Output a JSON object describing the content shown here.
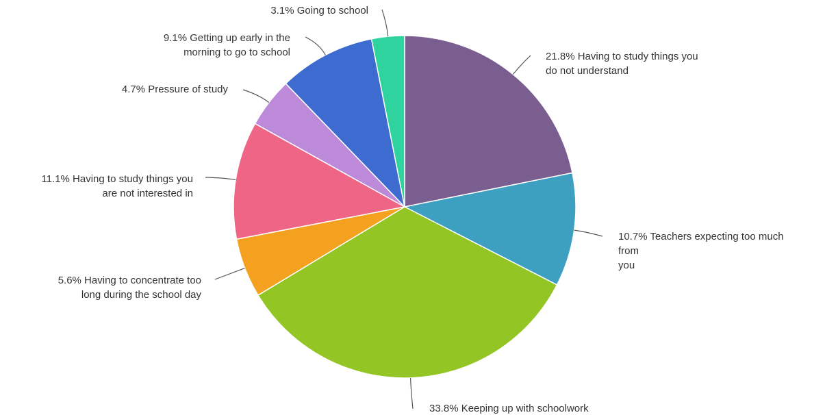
{
  "chart_data": {
    "type": "pie",
    "start_angle_deg": 0,
    "direction": "clockwise",
    "slices": [
      {
        "percent": 21.8,
        "label_lines": [
          "21.8% Having to study things you",
          "do not understand"
        ],
        "color": "#7b5e90"
      },
      {
        "percent": 10.7,
        "label_lines": [
          "10.7% Teachers expecting too much",
          "from",
          "you"
        ],
        "color": "#3ea0c1"
      },
      {
        "percent": 33.8,
        "label_lines": [
          "33.8% Keeping up with schoolwork"
        ],
        "color": "#93c524"
      },
      {
        "percent": 5.6,
        "label_lines": [
          "5.6% Having to concentrate too",
          "long during the school day"
        ],
        "color": "#f4a11f"
      },
      {
        "percent": 11.1,
        "label_lines": [
          "11.1% Having to study things you",
          "are not interested in"
        ],
        "color": "#ef6585"
      },
      {
        "percent": 4.7,
        "label_lines": [
          "4.7% Pressure of study"
        ],
        "color": "#bd8ad9"
      },
      {
        "percent": 9.1,
        "label_lines": [
          "9.1% Getting up early in the",
          "morning to go to school"
        ],
        "color": "#3e6bd0"
      },
      {
        "percent": 3.1,
        "label_lines": [
          "3.1% Going to school"
        ],
        "color": "#2ed39e"
      }
    ]
  }
}
